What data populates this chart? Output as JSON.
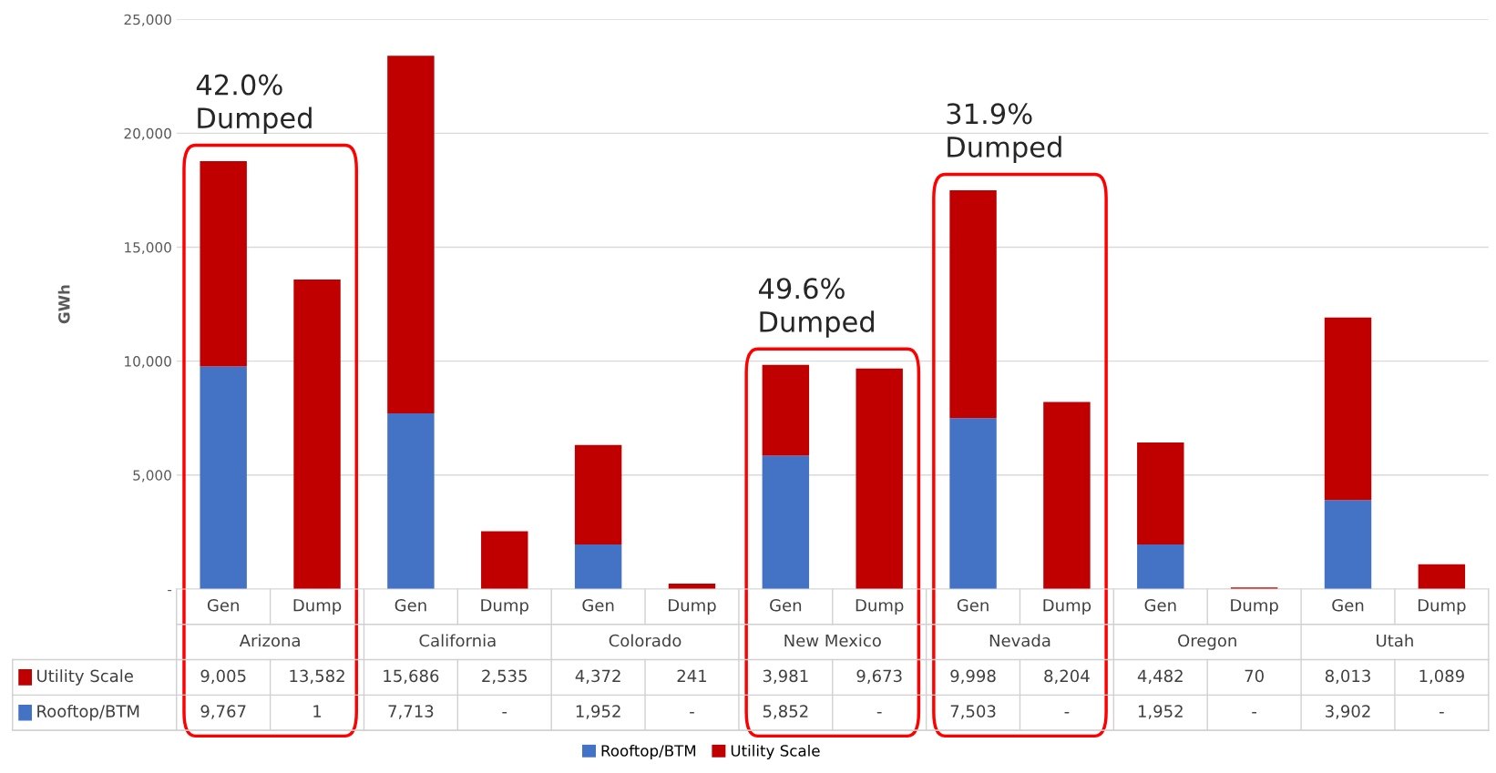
{
  "chart_data": {
    "type": "bar",
    "stacked": true,
    "ylabel": "GWh",
    "categories": [
      "Gen",
      "Dump",
      "Gen",
      "Dump",
      "Gen",
      "Dump",
      "Gen",
      "Dump",
      "Gen",
      "Dump",
      "Gen",
      "Dump",
      "Gen",
      "Dump"
    ],
    "series": [
      {
        "name": "Rooftop/BTM",
        "color": "#4472c4",
        "values": [
          9767,
          1,
          7713,
          0,
          1952,
          0,
          5852,
          0,
          7503,
          0,
          1952,
          0,
          3902,
          0
        ],
        "value_labels": [
          "9,767",
          "1",
          "7,713",
          "-",
          "1,952",
          "-",
          "5,852",
          "-",
          "7,503",
          "-",
          "1,952",
          "-",
          "3,902",
          "-"
        ]
      },
      {
        "name": "Utility Scale",
        "color": "#c00000",
        "values": [
          9005,
          13582,
          15686,
          2535,
          4372,
          241,
          3981,
          9673,
          9998,
          8204,
          4482,
          70,
          8013,
          1089
        ],
        "value_labels": [
          "9,005",
          "13,582",
          "15,686",
          "2,535",
          "4,372",
          "241",
          "3,981",
          "9,673",
          "9,998",
          "8,204",
          "4,482",
          "70",
          "8,013",
          "1,089"
        ]
      }
    ],
    "ylim": [
      0,
      25000
    ],
    "yticks": [
      {
        "value": 0,
        "label": "-"
      },
      {
        "value": 5000,
        "label": "5,000"
      },
      {
        "value": 10000,
        "label": "10,000"
      },
      {
        "value": 15000,
        "label": "15,000"
      },
      {
        "value": 20000,
        "label": "20,000"
      },
      {
        "value": 25000,
        "label": "25,000"
      }
    ],
    "grid": "y",
    "legend": "bottom",
    "annotations": [
      "Arizona",
      "California",
      "Colorado",
      "New Mexico",
      "Nevada",
      "Oregon",
      "Utah",
      "42.0%\nDumped",
      "49.6%\nDumped",
      "31.9%\nDumped"
    ]
  }
}
